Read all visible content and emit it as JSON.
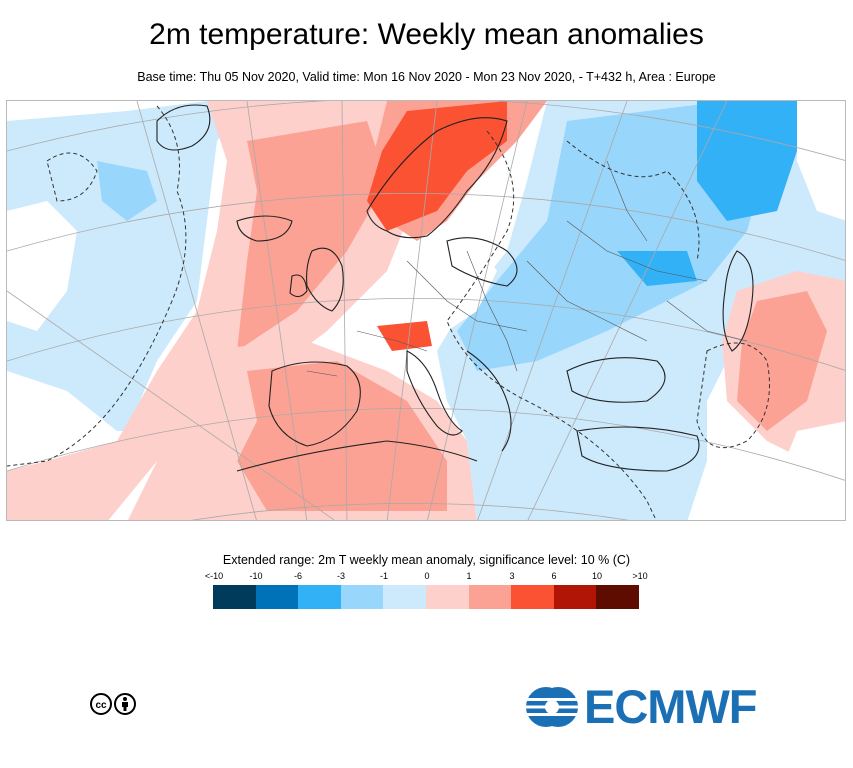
{
  "title": "2m temperature: Weekly mean anomalies",
  "subtitle": "Base time: Thu 05 Nov 2020, Valid time: Mon 16 Nov 2020 - Mon 23 Nov 2020, - T+432 h, Area : Europe",
  "legend": {
    "title": "Extended range: 2m T weekly mean anomaly, significance level: 10 % (C)",
    "ticks": [
      "<-10",
      "-10",
      "-6",
      "-3",
      "-1",
      "0",
      "1",
      "3",
      "6",
      "10",
      ">10"
    ],
    "colors": [
      "#003b5c",
      "#0073b8",
      "#33b1f7",
      "#99d6fb",
      "#cdeafd",
      "#fdd0cb",
      "#fca294",
      "#fb5234",
      "#b01505",
      "#5e0b00"
    ]
  },
  "logo": {
    "text": "ECMWF",
    "color": "#1b6fb5"
  },
  "license_icons": [
    "creative-commons-icon",
    "attribution-person-icon"
  ]
}
